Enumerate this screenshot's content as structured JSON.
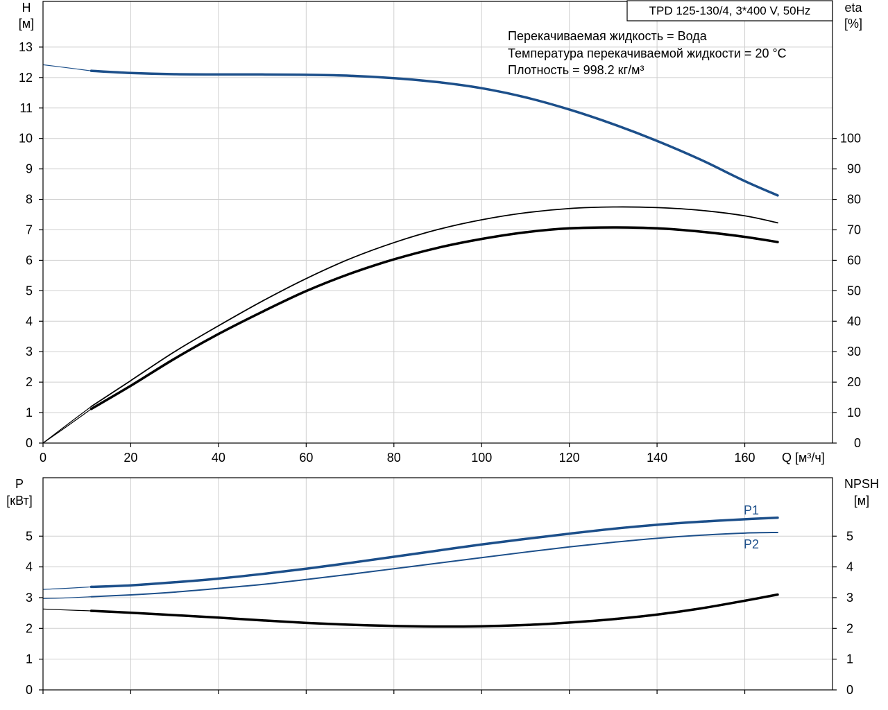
{
  "chart_data": [
    {
      "type": "line",
      "title": "TPD 125-130/4, 3*400 V, 50Hz",
      "info_lines": [
        "Перекачиваемая жидкость = Вода",
        "Температура перекачиваемой жидкости = 20 °C",
        "Плотность = 998.2 кг/м³"
      ],
      "xlabel": "Q [м³/ч]",
      "ylabel_left": [
        "H",
        "[м]"
      ],
      "ylabel_right": [
        "eta",
        "[%]"
      ],
      "xlim": [
        0,
        180
      ],
      "ylim_left": [
        0,
        14.5
      ],
      "ylim_right": [
        0,
        145
      ],
      "x_ticks": [
        0,
        20,
        40,
        60,
        80,
        100,
        120,
        140,
        160
      ],
      "y_ticks_left": [
        0,
        1,
        2,
        3,
        4,
        5,
        6,
        7,
        8,
        9,
        10,
        11,
        12,
        13
      ],
      "y_ticks_right": [
        0,
        10,
        20,
        30,
        40,
        50,
        60,
        70,
        80,
        90,
        100
      ],
      "grid": true,
      "series": [
        {
          "axis": "left",
          "color": "#1c4f8a",
          "width": 3.5,
          "x": [
            11,
            20,
            30,
            40,
            50,
            60,
            70,
            80,
            90,
            100,
            110,
            120,
            130,
            140,
            150,
            160,
            167.5
          ],
          "y": [
            12.22,
            12.15,
            12.11,
            12.1,
            12.1,
            12.09,
            12.06,
            11.98,
            11.85,
            11.65,
            11.35,
            10.95,
            10.47,
            9.92,
            9.3,
            8.6,
            8.13
          ],
          "ext_x": [
            0,
            5,
            11
          ],
          "ext_y": [
            12.42,
            12.33,
            12.22
          ]
        },
        {
          "axis": "right",
          "color": "#000000",
          "width": 1.8,
          "x": [
            11,
            20,
            30,
            40,
            50,
            60,
            70,
            80,
            90,
            100,
            110,
            120,
            130,
            140,
            150,
            160,
            167.5
          ],
          "y": [
            12.0,
            20.5,
            30.0,
            38.5,
            46.6,
            54.0,
            60.5,
            65.8,
            70.1,
            73.3,
            75.6,
            77.0,
            77.5,
            77.3,
            76.4,
            74.6,
            72.3
          ],
          "ext_x": [
            0,
            5,
            11
          ],
          "ext_y": [
            0,
            5.5,
            12.0
          ]
        },
        {
          "axis": "right",
          "color": "#000000",
          "width": 3.5,
          "x": [
            11,
            20,
            30,
            40,
            50,
            60,
            70,
            80,
            90,
            100,
            110,
            120,
            130,
            140,
            150,
            160,
            167.5
          ],
          "y": [
            11.2,
            18.8,
            27.7,
            35.8,
            43.1,
            49.9,
            55.6,
            60.3,
            64.1,
            67.0,
            69.2,
            70.5,
            70.8,
            70.5,
            69.4,
            67.7,
            66.0
          ],
          "ext_x": [
            0,
            5,
            11
          ],
          "ext_y": [
            0,
            5.0,
            11.2
          ]
        }
      ],
      "annotations": []
    },
    {
      "type": "line",
      "title": "",
      "xlim": [
        0,
        180
      ],
      "ylim_left": [
        0,
        6.9
      ],
      "ylim_right": [
        0,
        6.9
      ],
      "ylabel_left": [
        "P",
        "[кВт]"
      ],
      "ylabel_right": [
        "NPSH",
        "[м]"
      ],
      "y_ticks_left": [
        0,
        1,
        2,
        3,
        4,
        5
      ],
      "y_ticks_right": [
        0,
        1,
        2,
        3,
        4,
        5
      ],
      "grid": true,
      "series": [
        {
          "name": "P1",
          "axis": "left",
          "color": "#1c4f8a",
          "width": 3.5,
          "x": [
            11,
            20,
            30,
            40,
            50,
            60,
            70,
            80,
            90,
            100,
            110,
            120,
            130,
            140,
            150,
            160,
            167.5
          ],
          "y": [
            3.35,
            3.4,
            3.5,
            3.62,
            3.77,
            3.94,
            4.13,
            4.33,
            4.53,
            4.73,
            4.91,
            5.08,
            5.24,
            5.37,
            5.47,
            5.55,
            5.6
          ],
          "ext_x": [
            0,
            5,
            11
          ],
          "ext_y": [
            3.27,
            3.3,
            3.35
          ]
        },
        {
          "name": "P2",
          "axis": "left",
          "color": "#1c4f8a",
          "width": 2,
          "x": [
            11,
            20,
            30,
            40,
            50,
            60,
            70,
            80,
            90,
            100,
            110,
            120,
            130,
            140,
            150,
            160,
            167.5
          ],
          "y": [
            3.03,
            3.09,
            3.18,
            3.3,
            3.43,
            3.59,
            3.76,
            3.94,
            4.12,
            4.3,
            4.48,
            4.65,
            4.8,
            4.93,
            5.03,
            5.1,
            5.12
          ],
          "ext_x": [
            0,
            5,
            11
          ],
          "ext_y": [
            2.97,
            2.99,
            3.03
          ]
        },
        {
          "name": "NPSH",
          "axis": "right",
          "color": "#000000",
          "width": 3.5,
          "x": [
            11,
            20,
            30,
            40,
            50,
            60,
            70,
            80,
            90,
            100,
            110,
            120,
            130,
            140,
            150,
            160,
            167.5
          ],
          "y": [
            2.57,
            2.51,
            2.43,
            2.35,
            2.26,
            2.18,
            2.12,
            2.08,
            2.06,
            2.07,
            2.11,
            2.19,
            2.3,
            2.45,
            2.65,
            2.9,
            3.1
          ],
          "ext_x": [
            0,
            5,
            11
          ],
          "ext_y": [
            2.63,
            2.6,
            2.57
          ]
        }
      ]
    }
  ]
}
